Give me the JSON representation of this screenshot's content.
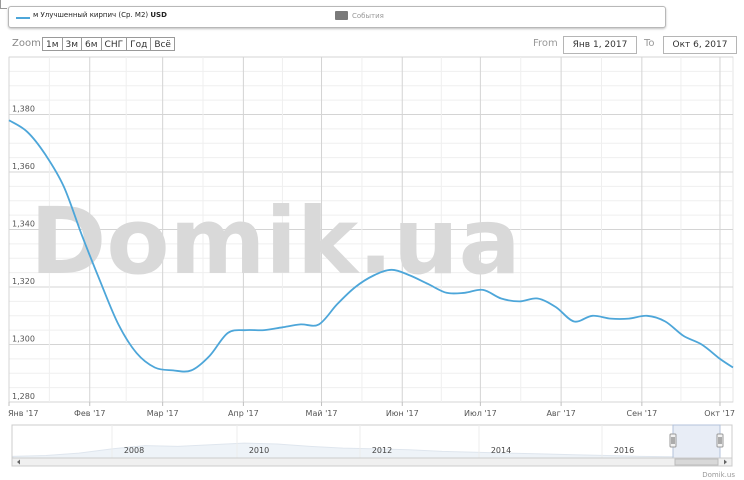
{
  "legend": {
    "series_label": "м Улучшенный кирпич (Ср. М2)",
    "currency": "USD",
    "events_label": "События",
    "series_color": "#4da6d9",
    "events_color": "#7a7a7a"
  },
  "range_selector": {
    "zoom_label": "Zoom",
    "buttons": [
      "1м",
      "3м",
      "6м",
      "СНГ",
      "Год",
      "Всё"
    ],
    "from_label": "From",
    "from_value": "Янв 1, 2017",
    "to_label": "To",
    "to_value": "Окт 6, 2017"
  },
  "watermark": "Domik.ua",
  "credit": "Domik.us",
  "chart_data": {
    "type": "line",
    "x": [
      "2017-01-01",
      "2017-01-08",
      "2017-01-15",
      "2017-01-22",
      "2017-01-29",
      "2017-02-05",
      "2017-02-12",
      "2017-02-19",
      "2017-02-26",
      "2017-03-05",
      "2017-03-12",
      "2017-03-19",
      "2017-03-26",
      "2017-04-02",
      "2017-04-09",
      "2017-04-16",
      "2017-04-23",
      "2017-04-30",
      "2017-05-07",
      "2017-05-14",
      "2017-05-21",
      "2017-05-28",
      "2017-06-04",
      "2017-06-11",
      "2017-06-18",
      "2017-06-25",
      "2017-07-02",
      "2017-07-09",
      "2017-07-16",
      "2017-07-23",
      "2017-07-30",
      "2017-08-06",
      "2017-08-13",
      "2017-08-20",
      "2017-08-27",
      "2017-09-03",
      "2017-09-10",
      "2017-09-17",
      "2017-09-24",
      "2017-10-01",
      "2017-10-06"
    ],
    "series": [
      {
        "values": [
          1378,
          1374,
          1366,
          1355,
          1338,
          1322,
          1307,
          1297,
          1292,
          1291,
          1291,
          1296,
          1304,
          1305,
          1305,
          1306,
          1307,
          1307,
          1314,
          1320,
          1324,
          1326,
          1324,
          1321,
          1318,
          1318,
          1319,
          1316,
          1315,
          1316,
          1313,
          1308,
          1310,
          1309,
          1309,
          1310,
          1308,
          1303,
          1300,
          1295,
          1292
        ],
        "color": "#4da6d9"
      }
    ],
    "ylim": [
      1280,
      1400
    ],
    "yticks": [
      "1,280",
      "1,300",
      "1,320",
      "1,340",
      "1,360",
      "1,380"
    ],
    "xticks": [
      "Янв '17",
      "Фев '17",
      "Мар '17",
      "Апр '17",
      "Май '17",
      "Июн '17",
      "Июл '17",
      "Авг '17",
      "Сен '17",
      "Окт '17"
    ],
    "grid": true,
    "navigator_ticks": [
      "2008",
      "2010",
      "2012",
      "2014",
      "2016"
    ]
  }
}
